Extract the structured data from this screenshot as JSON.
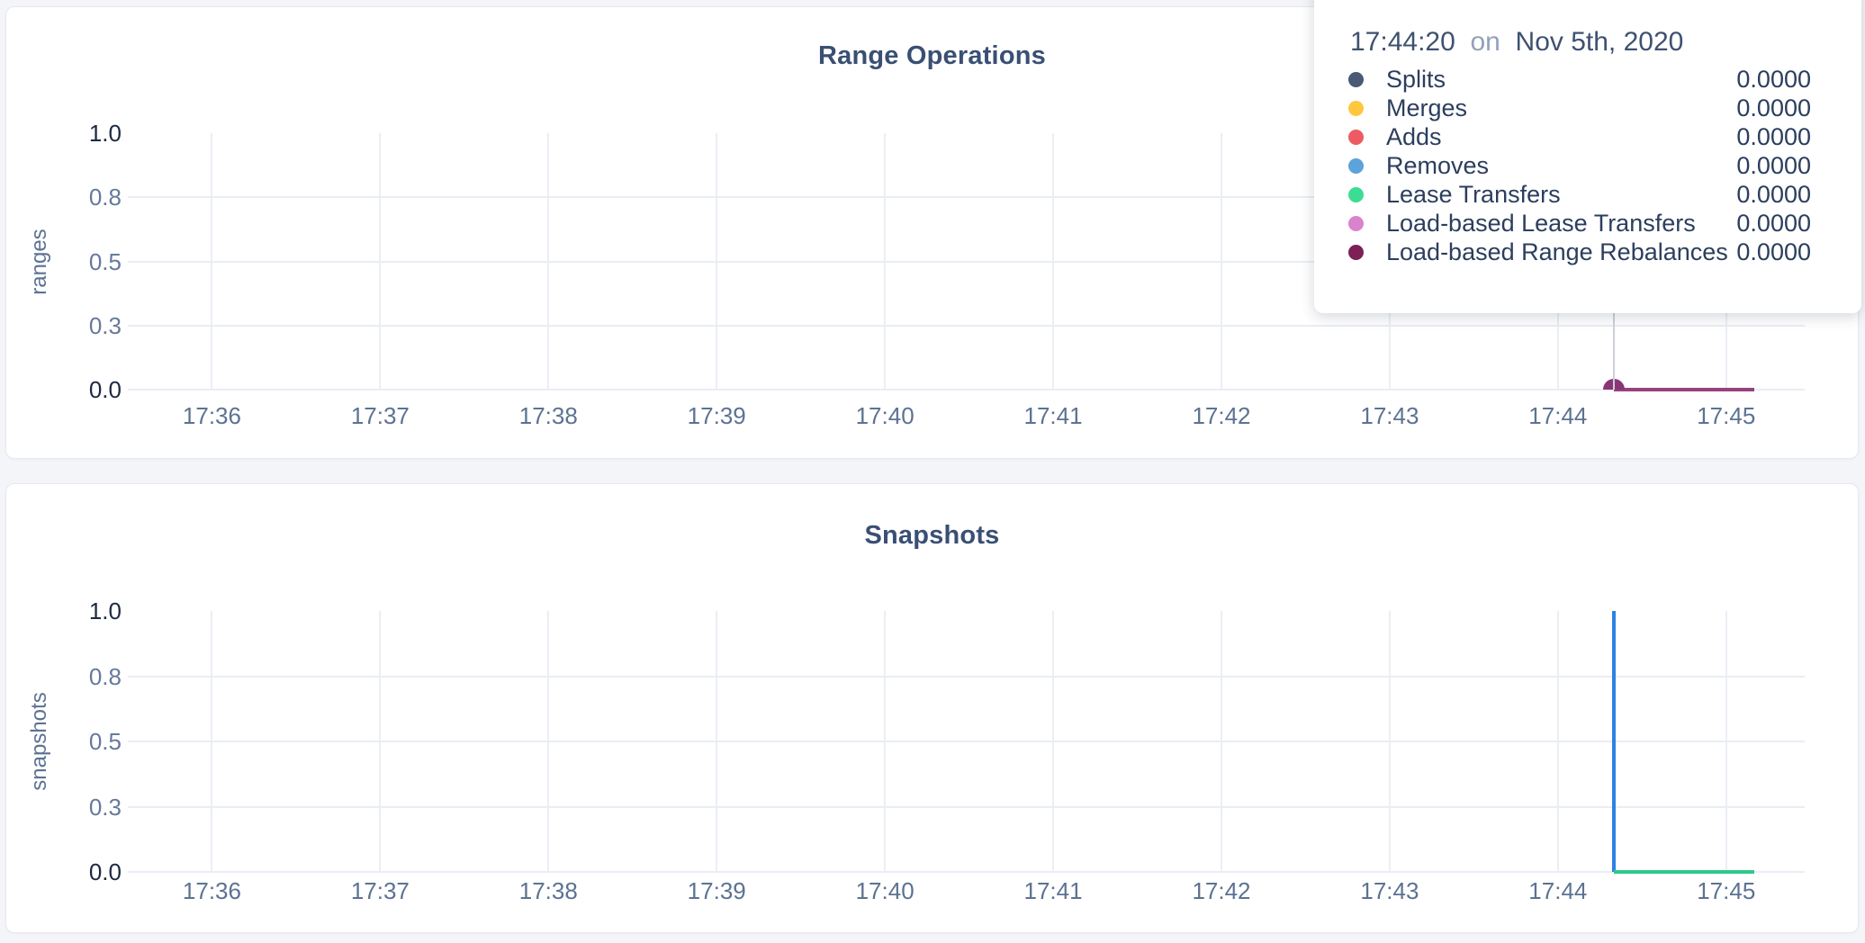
{
  "page": {
    "background": "#f4f5f9"
  },
  "tooltip": {
    "time": "17:44:20",
    "on_word": "on",
    "date": "Nov 5th, 2020",
    "crosshair_time": "17:44:20",
    "crosshair_chart_index": 0,
    "rows": [
      {
        "label": "Splits",
        "value": "0.0000",
        "color": "#4a5a75"
      },
      {
        "label": "Merges",
        "value": "0.0000",
        "color": "#fec73e"
      },
      {
        "label": "Adds",
        "value": "0.0000",
        "color": "#ec5c62"
      },
      {
        "label": "Removes",
        "value": "0.0000",
        "color": "#5ba3da"
      },
      {
        "label": "Lease Transfers",
        "value": "0.0000",
        "color": "#3bdd92"
      },
      {
        "label": "Load-based Lease Transfers",
        "value": "0.0000",
        "color": "#d983cf"
      },
      {
        "label": "Load-based Range Rebalances",
        "value": "0.0000",
        "color": "#7c2057"
      }
    ]
  },
  "chart_data": [
    {
      "type": "line",
      "title": "Range Operations",
      "ylabel": "ranges",
      "xlabel": "",
      "ylim": [
        0,
        1
      ],
      "grid": true,
      "x_domain": [
        "17:35:30",
        "17:45:28"
      ],
      "x_ticks": [
        "17:36",
        "17:37",
        "17:38",
        "17:39",
        "17:40",
        "17:41",
        "17:42",
        "17:43",
        "17:44",
        "17:45"
      ],
      "y_ticks": [
        {
          "value": 1,
          "label": "1.0",
          "strong": true
        },
        {
          "value": 0.75,
          "label": "0.8",
          "strong": false
        },
        {
          "value": 0.5,
          "label": "0.5",
          "strong": false
        },
        {
          "value": 0.25,
          "label": "0.3",
          "strong": false
        },
        {
          "value": 0,
          "label": "0.0",
          "strong": true
        }
      ],
      "series": [
        {
          "name": "Splits",
          "color": "#4a5a75",
          "points": [
            [
              "17:44:20",
              0
            ],
            [
              "17:45:10",
              0
            ]
          ]
        },
        {
          "name": "Merges",
          "color": "#fec73e",
          "points": [
            [
              "17:44:20",
              0
            ],
            [
              "17:45:10",
              0
            ]
          ]
        },
        {
          "name": "Adds",
          "color": "#ec5c62",
          "points": [
            [
              "17:44:20",
              0
            ],
            [
              "17:45:10",
              0
            ]
          ]
        },
        {
          "name": "Removes",
          "color": "#5ba3da",
          "points": [
            [
              "17:44:20",
              0
            ],
            [
              "17:45:10",
              0
            ]
          ]
        },
        {
          "name": "Lease Transfers",
          "color": "#3bdd92",
          "points": [
            [
              "17:44:20",
              0
            ],
            [
              "17:45:10",
              0
            ]
          ]
        },
        {
          "name": "Load-based Lease Transfers",
          "color": "#d983cf",
          "points": [
            [
              "17:44:20",
              0
            ],
            [
              "17:45:10",
              0
            ]
          ]
        },
        {
          "name": "Load-based Range Rebalances",
          "color": "#96417f",
          "points": [
            [
              "17:44:20",
              0
            ],
            [
              "17:45:10",
              0
            ]
          ]
        }
      ],
      "hover_dot": {
        "time": "17:44:20",
        "value": 0,
        "color": "#8a3577"
      }
    },
    {
      "type": "line",
      "title": "Snapshots",
      "ylabel": "snapshots",
      "xlabel": "",
      "ylim": [
        0,
        1
      ],
      "grid": true,
      "x_domain": [
        "17:35:30",
        "17:45:28"
      ],
      "x_ticks": [
        "17:36",
        "17:37",
        "17:38",
        "17:39",
        "17:40",
        "17:41",
        "17:42",
        "17:43",
        "17:44",
        "17:45"
      ],
      "y_ticks": [
        {
          "value": 1,
          "label": "1.0",
          "strong": true
        },
        {
          "value": 0.75,
          "label": "0.8",
          "strong": false
        },
        {
          "value": 0.5,
          "label": "0.5",
          "strong": false
        },
        {
          "value": 0.25,
          "label": "0.3",
          "strong": false
        },
        {
          "value": 0,
          "label": "0.0",
          "strong": true
        }
      ],
      "series": [
        {
          "name": "",
          "color": "#2e82e3",
          "points": [
            [
              "17:44:20",
              1
            ],
            [
              "17:44:20",
              0
            ]
          ]
        },
        {
          "name": "",
          "color": "#2ec98c",
          "points": [
            [
              "17:44:20",
              0
            ],
            [
              "17:45:10",
              0
            ]
          ]
        }
      ]
    }
  ]
}
